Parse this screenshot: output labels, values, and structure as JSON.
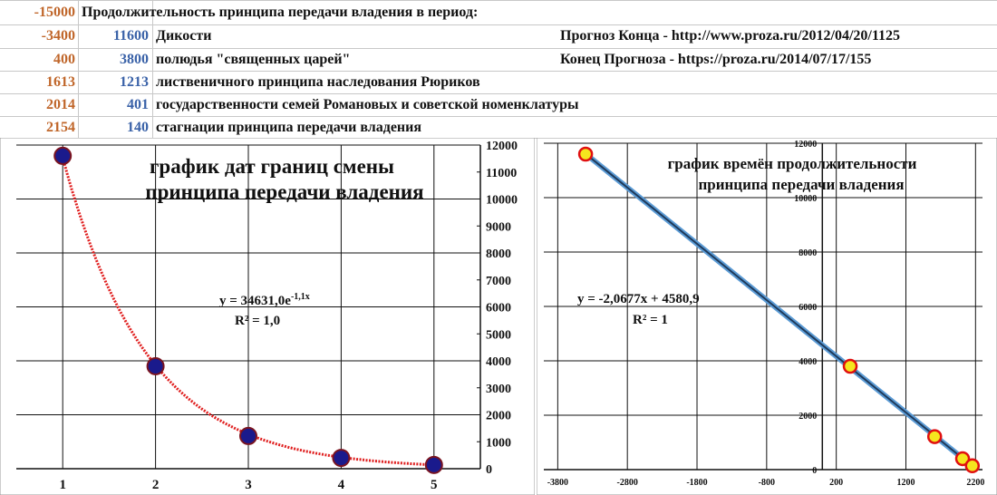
{
  "sheet": {
    "header_value": "-15000",
    "header_text": "Продолжительность принципа  передачи владения в период:",
    "rows": [
      {
        "year": "-3400",
        "duration": "11600",
        "label": "Дикости"
      },
      {
        "year": "400",
        "duration": "3800",
        "label": "полюдья \"священных царей\""
      },
      {
        "year": "1613",
        "duration": "1213",
        "label": "лиственичного принципа наследования Рюриков"
      },
      {
        "year": "2014",
        "duration": "401",
        "label": "государственности семей Романовых и советской номенклатуры"
      },
      {
        "year": "2154",
        "duration": "140",
        "label": "стагнации принципа передачи владения"
      }
    ],
    "forecast_start": "Прогноз Конца - http://www.proza.ru/2012/04/20/1125",
    "forecast_end": "Конец Прогноза - https://proza.ru/2014/07/17/155"
  },
  "chart_data": [
    {
      "type": "scatter",
      "title": "график дат границ смены принципа передачи владения",
      "title_lines": [
        "график дат границ смены",
        "принципа передачи владения"
      ],
      "x": [
        1,
        2,
        3,
        4,
        5
      ],
      "y": [
        11600,
        3800,
        1213,
        401,
        140
      ],
      "xlim": [
        0.5,
        5.5
      ],
      "ylim": [
        0,
        12000
      ],
      "x_ticks": [
        "1",
        "2",
        "3",
        "4",
        "5"
      ],
      "y_ticks": [
        "0",
        "1000",
        "2000",
        "3000",
        "4000",
        "5000",
        "6000",
        "7000",
        "8000",
        "9000",
        "10000",
        "11000",
        "12000"
      ],
      "trendline": {
        "type": "exponential",
        "equation": "y = 34631,0e",
        "exponent": "-1,1x",
        "r2": "R² = 1,0",
        "a": 34631,
        "b": -1.1
      },
      "grid": true,
      "colors": {
        "point": "#1a1a8c",
        "point_edge": "#7a1420",
        "trend": "#e02020"
      }
    },
    {
      "type": "scatter",
      "title": "график времён продолжительности принципа передачи владения",
      "title_lines": [
        "график времён продолжительности",
        "принципа передачи владения"
      ],
      "x": [
        -3400,
        400,
        1613,
        2014,
        2154
      ],
      "y": [
        11600,
        3800,
        1213,
        401,
        140
      ],
      "xlim": [
        -4000,
        2300
      ],
      "ylim": [
        0,
        12000
      ],
      "x_ticks": [
        "-3800",
        "-2800",
        "-1800",
        "-800",
        "200",
        "1200",
        "2200"
      ],
      "y_ticks": [
        "0",
        "2000",
        "4000",
        "6000",
        "8000",
        "10000",
        "12000"
      ],
      "trendline": {
        "type": "linear",
        "equation": "y = -2,0677x + 4580,9",
        "r2": "R² = 1",
        "slope": -2.0677,
        "intercept": 4580.9
      },
      "grid": true,
      "colors": {
        "point": "#f5e61e",
        "point_edge": "#e01010",
        "trend": "#1f3a5a",
        "trend_glow": "#5b9bd5"
      }
    }
  ]
}
